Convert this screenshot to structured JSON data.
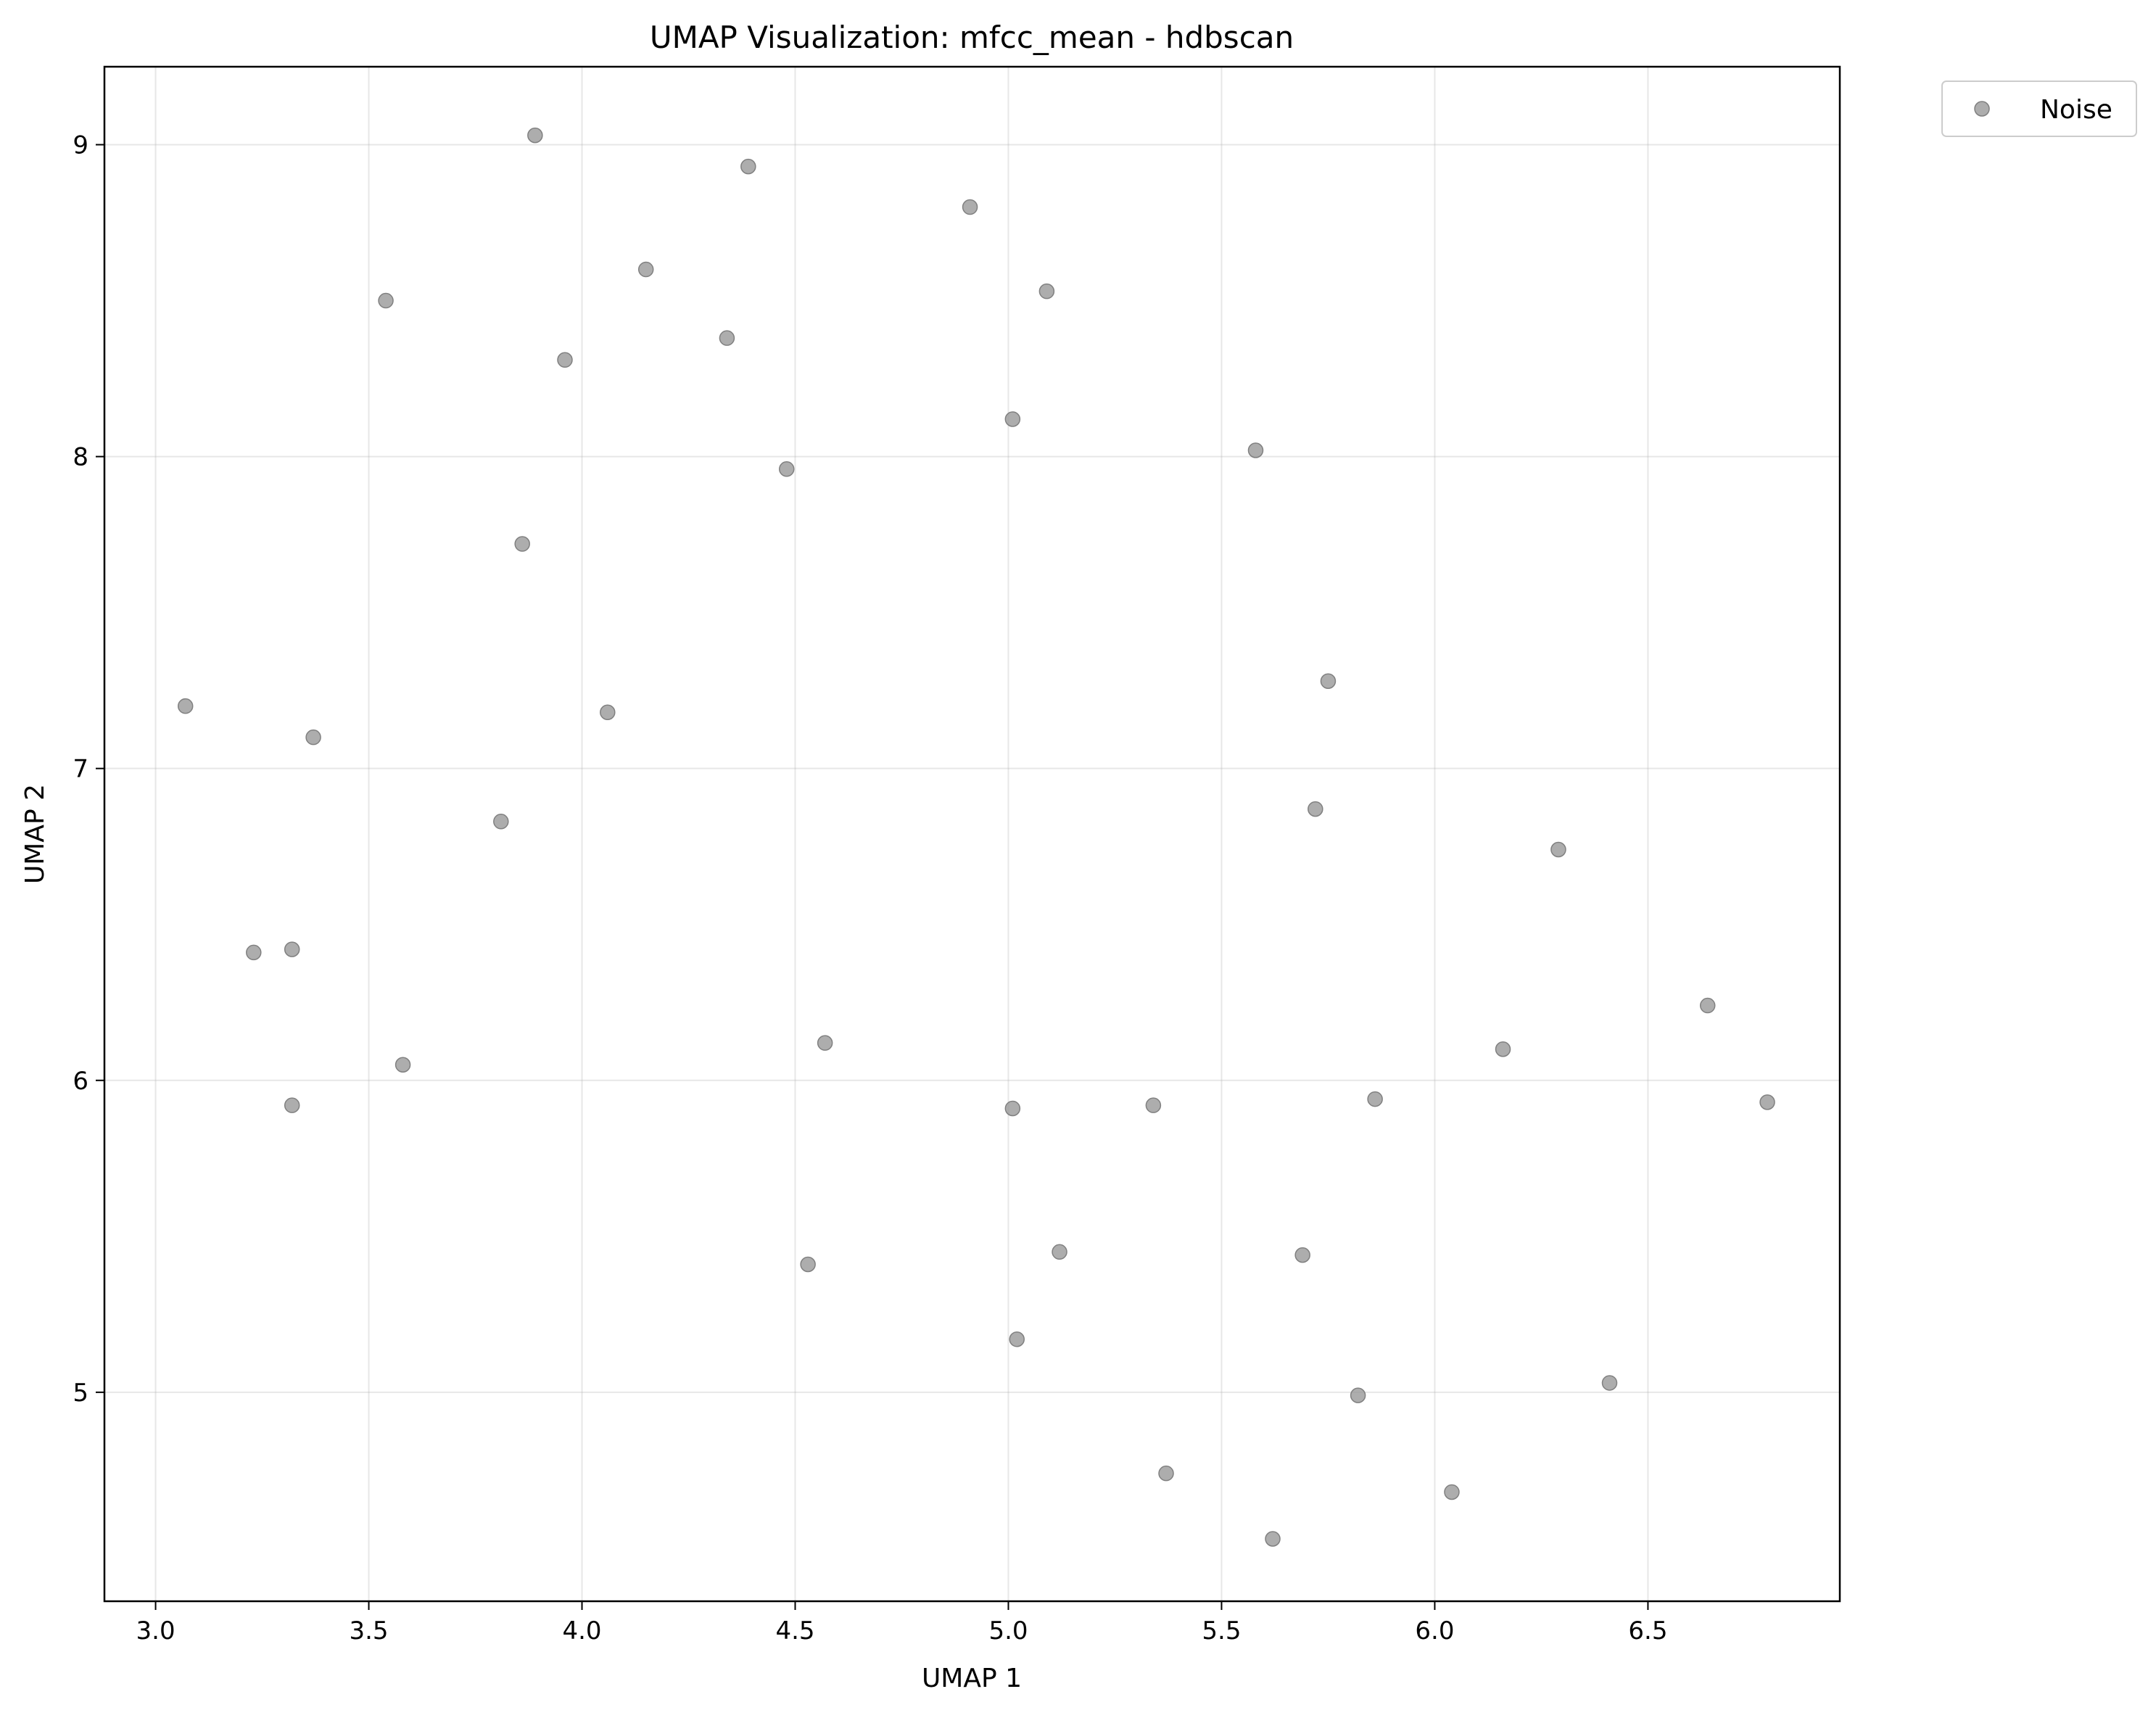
{
  "chart_data": {
    "type": "scatter",
    "title": "UMAP Visualization: mfcc_mean - hdbscan",
    "xlabel": "UMAP 1",
    "ylabel": "UMAP 2",
    "xlim": [
      2.88,
      6.95
    ],
    "ylim": [
      4.33,
      9.25
    ],
    "xticks": [
      3.0,
      3.5,
      4.0,
      4.5,
      5.0,
      5.5,
      6.0,
      6.5
    ],
    "xtick_labels": [
      "3.0",
      "3.5",
      "4.0",
      "4.5",
      "5.0",
      "5.5",
      "6.0",
      "6.5"
    ],
    "yticks": [
      5,
      6,
      7,
      8,
      9
    ],
    "ytick_labels": [
      "5",
      "6",
      "7",
      "8",
      "9"
    ],
    "grid": true,
    "legend": {
      "placement": "outside-top-right"
    },
    "series": [
      {
        "name": "Noise",
        "color": "#999999",
        "points": [
          [
            3.89,
            9.03
          ],
          [
            4.39,
            8.93
          ],
          [
            4.91,
            8.8
          ],
          [
            4.15,
            8.6
          ],
          [
            3.54,
            8.5
          ],
          [
            5.09,
            8.53
          ],
          [
            4.34,
            8.38
          ],
          [
            3.96,
            8.31
          ],
          [
            5.01,
            8.12
          ],
          [
            5.58,
            8.02
          ],
          [
            4.48,
            7.96
          ],
          [
            3.86,
            7.72
          ],
          [
            5.75,
            7.28
          ],
          [
            3.07,
            7.2
          ],
          [
            4.06,
            7.18
          ],
          [
            3.37,
            7.1
          ],
          [
            5.72,
            6.87
          ],
          [
            3.81,
            6.83
          ],
          [
            6.29,
            6.74
          ],
          [
            3.23,
            6.41
          ],
          [
            3.32,
            6.42
          ],
          [
            6.64,
            6.24
          ],
          [
            4.57,
            6.12
          ],
          [
            6.16,
            6.1
          ],
          [
            3.58,
            6.05
          ],
          [
            5.86,
            5.94
          ],
          [
            6.78,
            5.93
          ],
          [
            3.32,
            5.92
          ],
          [
            5.34,
            5.92
          ],
          [
            5.01,
            5.91
          ],
          [
            5.12,
            5.45
          ],
          [
            5.69,
            5.44
          ],
          [
            4.53,
            5.41
          ],
          [
            5.02,
            5.17
          ],
          [
            6.41,
            5.03
          ],
          [
            5.82,
            4.99
          ],
          [
            5.37,
            4.74
          ],
          [
            6.04,
            4.68
          ],
          [
            5.62,
            4.53
          ]
        ]
      }
    ]
  }
}
